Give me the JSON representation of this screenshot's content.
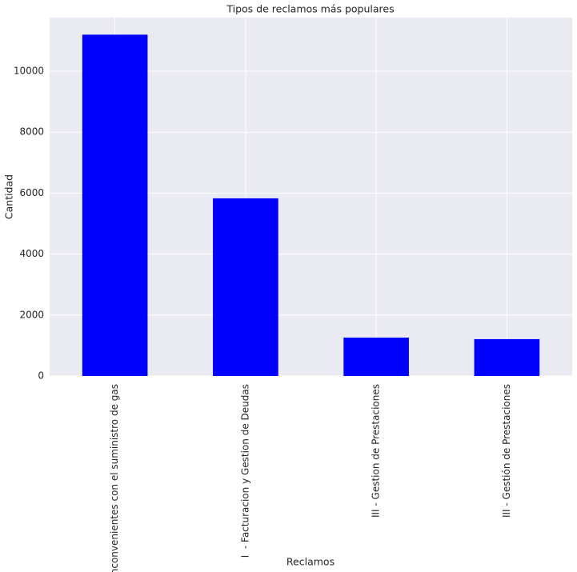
{
  "chart_data": {
    "type": "bar",
    "title": "Tipos de reclamos más populares",
    "x_label": "Reclamos",
    "y_label": "Cantidad",
    "categories": [
      "II  - Inconvenientes con el suministro de gas",
      "I  - Facturacion y Gestion de Deudas",
      "III - Gestion de Prestaciones",
      "III - Gestión de Prestaciones"
    ],
    "values": [
      11200,
      5830,
      1260,
      1210
    ],
    "color": "#0000ff",
    "ylim": [
      0,
      11760
    ],
    "yticks": [
      0,
      2000,
      4000,
      6000,
      8000,
      10000
    ],
    "grid": true
  }
}
